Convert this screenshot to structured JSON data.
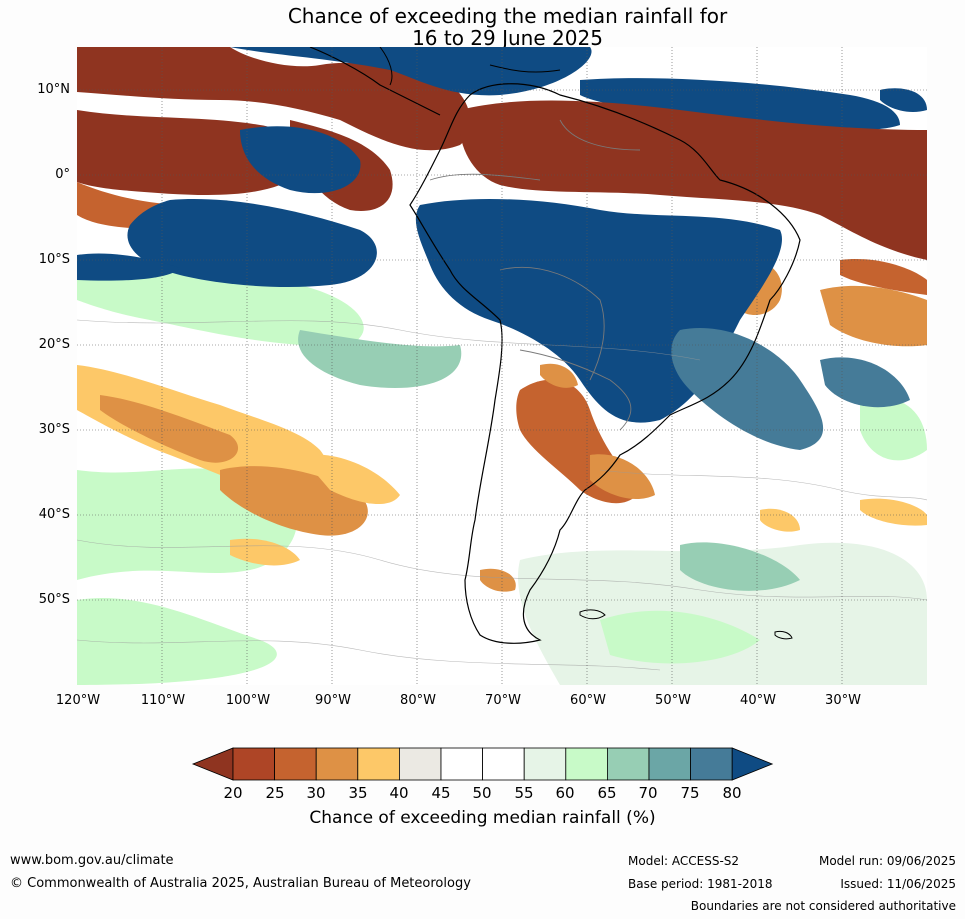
{
  "title": {
    "line1": "Chance of exceeding the median rainfall for",
    "line2": "16 to 29 June 2025"
  },
  "map": {
    "lat_labels": [
      "10°N",
      "0°",
      "10°S",
      "20°S",
      "30°S",
      "40°S",
      "50°S"
    ],
    "lon_labels": [
      "120°W",
      "110°W",
      "100°W",
      "90°W",
      "80°W",
      "70°W",
      "60°W",
      "50°W",
      "40°W",
      "30°W"
    ],
    "lat_range": [
      -60,
      15
    ],
    "lon_range": [
      -120,
      -20
    ],
    "gridlines": true
  },
  "colorbar": {
    "ticks": [
      "20",
      "25",
      "30",
      "35",
      "40",
      "45",
      "50",
      "55",
      "60",
      "65",
      "70",
      "75",
      "80"
    ],
    "colors": [
      "#8f3420",
      "#ae4526",
      "#c5632f",
      "#de9145",
      "#fdc868",
      "#ebe9e3",
      "#ffffff",
      "#ffffff",
      "#e6f4e7",
      "#c8fac8",
      "#97ceb4",
      "#6ba6a6",
      "#457b98",
      "#0f4b83"
    ],
    "label": "Chance of exceeding median rainfall (%)"
  },
  "footer": {
    "website": "www.bom.gov.au/climate",
    "copyright": "© Commonwealth of Australia 2025, Australian Bureau of Meteorology",
    "model": "Model: ACCESS-S2",
    "base_period": "Base period: 1981-2018",
    "model_run": "Model run: 09/06/2025",
    "issued": "Issued: 11/06/2025",
    "disclaimer": "Boundaries are not considered authoritative"
  }
}
